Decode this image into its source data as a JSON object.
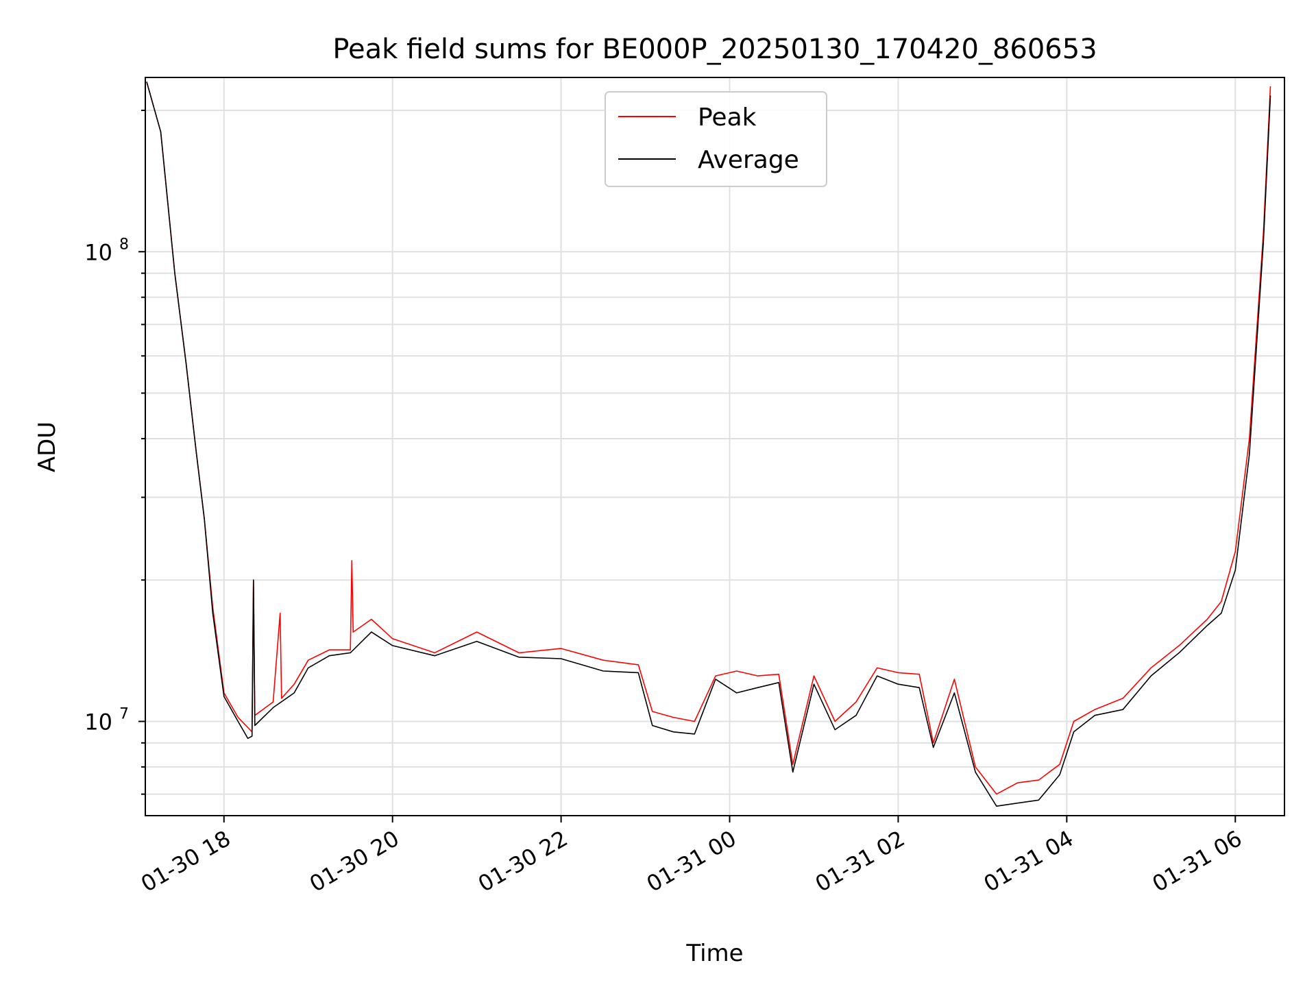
{
  "chart_data": {
    "type": "line",
    "title": "Peak field sums for BE000P_20250130_170420_860653",
    "xlabel": "Time",
    "ylabel": "ADU",
    "y_scale": "log",
    "xlim": [
      "2025-01-30T17:04",
      "2025-01-31T06:35"
    ],
    "ylim": [
      6300000,
      235000000
    ],
    "x_ticks": [
      {
        "t": "2025-01-30T18:00",
        "label": "01-30 18"
      },
      {
        "t": "2025-01-30T20:00",
        "label": "01-30 20"
      },
      {
        "t": "2025-01-30T22:00",
        "label": "01-30 22"
      },
      {
        "t": "2025-01-31T00:00",
        "label": "01-31 00"
      },
      {
        "t": "2025-01-31T02:00",
        "label": "01-31 02"
      },
      {
        "t": "2025-01-31T04:00",
        "label": "01-31 04"
      },
      {
        "t": "2025-01-31T06:00",
        "label": "01-31 06"
      }
    ],
    "y_major_ticks": [
      {
        "value": 10000000,
        "base": "10",
        "exp": "7"
      },
      {
        "value": 100000000,
        "base": "10",
        "exp": "8"
      }
    ],
    "grid": true,
    "legend_position": "upper-center",
    "series": [
      {
        "name": "Peak",
        "color": "#ff0000",
        "x": [
          "2025-01-30T17:05",
          "2025-01-30T17:15",
          "2025-01-30T17:25",
          "2025-01-30T17:33",
          "2025-01-30T17:40",
          "2025-01-30T17:46",
          "2025-01-30T17:52",
          "2025-01-30T18:00",
          "2025-01-30T18:10",
          "2025-01-30T18:20",
          "2025-01-30T18:21",
          "2025-01-30T18:22",
          "2025-01-30T18:35",
          "2025-01-30T18:40",
          "2025-01-30T18:41",
          "2025-01-30T18:50",
          "2025-01-30T19:00",
          "2025-01-30T19:15",
          "2025-01-30T19:30",
          "2025-01-30T19:31",
          "2025-01-30T19:32",
          "2025-01-30T19:45",
          "2025-01-30T20:00",
          "2025-01-30T20:30",
          "2025-01-30T21:00",
          "2025-01-30T21:30",
          "2025-01-30T22:00",
          "2025-01-30T22:30",
          "2025-01-30T22:55",
          "2025-01-30T23:05",
          "2025-01-30T23:20",
          "2025-01-30T23:35",
          "2025-01-30T23:50",
          "2025-01-31T00:05",
          "2025-01-31T00:20",
          "2025-01-31T00:35",
          "2025-01-31T00:45",
          "2025-01-31T01:00",
          "2025-01-31T01:15",
          "2025-01-31T01:30",
          "2025-01-31T01:45",
          "2025-01-31T02:00",
          "2025-01-31T02:15",
          "2025-01-31T02:25",
          "2025-01-31T02:40",
          "2025-01-31T02:55",
          "2025-01-31T03:10",
          "2025-01-31T03:25",
          "2025-01-31T03:40",
          "2025-01-31T03:55",
          "2025-01-31T04:05",
          "2025-01-31T04:20",
          "2025-01-31T04:40",
          "2025-01-31T05:00",
          "2025-01-31T05:20",
          "2025-01-31T05:40",
          "2025-01-31T05:50",
          "2025-01-31T06:00",
          "2025-01-31T06:10",
          "2025-01-31T06:20",
          "2025-01-31T06:25"
        ],
        "y": [
          230000000,
          180000000,
          90000000,
          58000000,
          38000000,
          27000000,
          17500000,
          11500000,
          10200000,
          9500000,
          20000000,
          10300000,
          11000000,
          17000000,
          11200000,
          12000000,
          13500000,
          14200000,
          14200000,
          22000000,
          15500000,
          16500000,
          15000000,
          14000000,
          15500000,
          14000000,
          14300000,
          13500000,
          13200000,
          10500000,
          10200000,
          10000000,
          12500000,
          12800000,
          12500000,
          12600000,
          8100000,
          12500000,
          10000000,
          11000000,
          13000000,
          12700000,
          12600000,
          9000000,
          12300000,
          8000000,
          7000000,
          7400000,
          7500000,
          8100000,
          10000000,
          10600000,
          11200000,
          13000000,
          14500000,
          16500000,
          18000000,
          23000000,
          40000000,
          110000000,
          225000000
        ]
      },
      {
        "name": "Average",
        "color": "#000000",
        "x": [
          "2025-01-30T17:05",
          "2025-01-30T17:15",
          "2025-01-30T17:25",
          "2025-01-30T17:33",
          "2025-01-30T17:40",
          "2025-01-30T17:46",
          "2025-01-30T17:52",
          "2025-01-30T18:00",
          "2025-01-30T18:10",
          "2025-01-30T18:17",
          "2025-01-30T18:20",
          "2025-01-30T18:21",
          "2025-01-30T18:22",
          "2025-01-30T18:35",
          "2025-01-30T18:50",
          "2025-01-30T19:00",
          "2025-01-30T19:15",
          "2025-01-30T19:30",
          "2025-01-30T19:45",
          "2025-01-30T20:00",
          "2025-01-30T20:30",
          "2025-01-30T21:00",
          "2025-01-30T21:30",
          "2025-01-30T22:00",
          "2025-01-30T22:30",
          "2025-01-30T22:55",
          "2025-01-30T23:05",
          "2025-01-30T23:20",
          "2025-01-30T23:35",
          "2025-01-30T23:50",
          "2025-01-31T00:05",
          "2025-01-31T00:20",
          "2025-01-31T00:35",
          "2025-01-31T00:45",
          "2025-01-31T01:00",
          "2025-01-31T01:15",
          "2025-01-31T01:30",
          "2025-01-31T01:45",
          "2025-01-31T02:00",
          "2025-01-31T02:15",
          "2025-01-31T02:25",
          "2025-01-31T02:40",
          "2025-01-31T02:55",
          "2025-01-31T03:10",
          "2025-01-31T03:25",
          "2025-01-31T03:40",
          "2025-01-31T03:55",
          "2025-01-31T04:05",
          "2025-01-31T04:20",
          "2025-01-31T04:40",
          "2025-01-31T05:00",
          "2025-01-31T05:20",
          "2025-01-31T05:40",
          "2025-01-31T05:50",
          "2025-01-31T06:00",
          "2025-01-31T06:10",
          "2025-01-31T06:20",
          "2025-01-31T06:25"
        ],
        "y": [
          230000000,
          180000000,
          90000000,
          58000000,
          38000000,
          27000000,
          17000000,
          11300000,
          10000000,
          9200000,
          9300000,
          20000000,
          9800000,
          10700000,
          11500000,
          13000000,
          13800000,
          14000000,
          15500000,
          14500000,
          13800000,
          14800000,
          13700000,
          13600000,
          12800000,
          12700000,
          9800000,
          9500000,
          9400000,
          12300000,
          11500000,
          11800000,
          12100000,
          7800000,
          12000000,
          9600000,
          10300000,
          12500000,
          12000000,
          11800000,
          8800000,
          11500000,
          7800000,
          6600000,
          6700000,
          6800000,
          7700000,
          9500000,
          10300000,
          10600000,
          12500000,
          14000000,
          16000000,
          17000000,
          21000000,
          37000000,
          105000000,
          215000000
        ]
      }
    ]
  }
}
